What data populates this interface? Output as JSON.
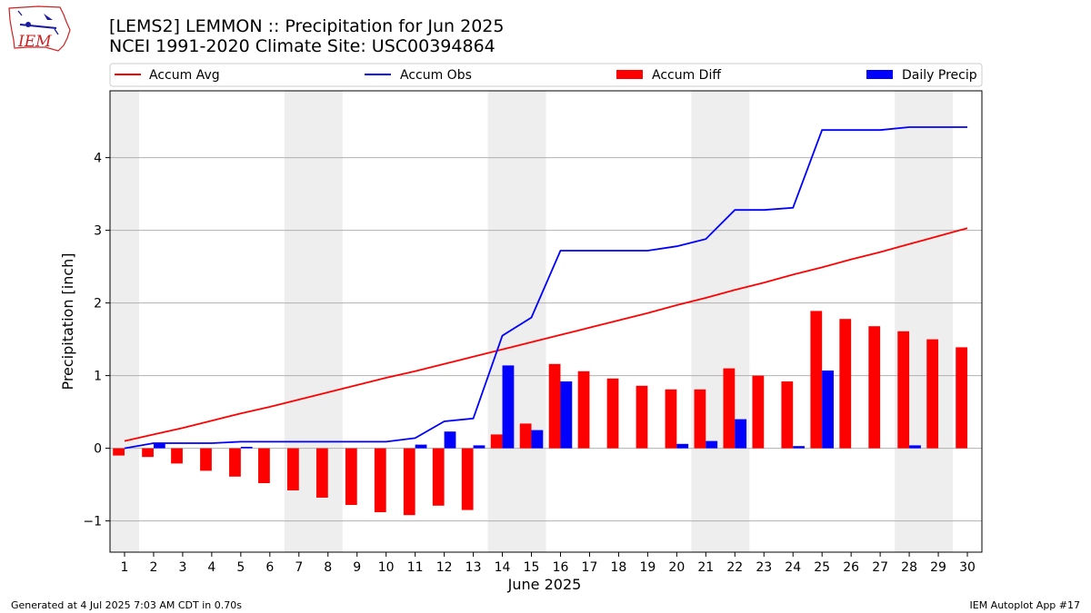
{
  "logo": {
    "text": "IEM"
  },
  "chart_data": {
    "type": "bar",
    "title": "[LEMS2] LEMMON :: Precipitation for Jun 2025",
    "subtitle": "NCEI 1991-2020 Climate Site: USC00394864",
    "xlabel": "June 2025",
    "ylabel": "Precipitation [inch]",
    "ylim": [
      -1.43,
      4.92
    ],
    "yticks": [
      -1,
      0,
      1,
      2,
      3,
      4
    ],
    "ytick_labels": [
      "−1",
      "0",
      "1",
      "2",
      "3",
      "4"
    ],
    "grid": "horizontal",
    "legend_position": "top",
    "days": [
      1,
      2,
      3,
      4,
      5,
      6,
      7,
      8,
      9,
      10,
      11,
      12,
      13,
      14,
      15,
      16,
      17,
      18,
      19,
      20,
      21,
      22,
      23,
      24,
      25,
      26,
      27,
      28,
      29,
      30
    ],
    "weekend_shading": [
      [
        0.5,
        1.5
      ],
      [
        6.5,
        8.5
      ],
      [
        13.5,
        15.5
      ],
      [
        20.5,
        22.5
      ],
      [
        27.5,
        29.5
      ]
    ],
    "series": [
      {
        "name": "Accum Avg",
        "kind": "line",
        "color": "#ff0000",
        "values": [
          0.1,
          0.19,
          0.28,
          0.38,
          0.48,
          0.57,
          0.67,
          0.77,
          0.87,
          0.97,
          1.06,
          1.16,
          1.26,
          1.36,
          1.46,
          1.56,
          1.66,
          1.76,
          1.86,
          1.97,
          2.07,
          2.18,
          2.28,
          2.39,
          2.49,
          2.6,
          2.7,
          2.81,
          2.92,
          3.03
        ]
      },
      {
        "name": "Accum Obs",
        "kind": "line",
        "color": "#0000ff",
        "values": [
          0.0,
          0.07,
          0.07,
          0.07,
          0.09,
          0.09,
          0.09,
          0.09,
          0.09,
          0.09,
          0.14,
          0.37,
          0.41,
          1.55,
          1.8,
          2.72,
          2.72,
          2.72,
          2.72,
          2.78,
          2.88,
          3.28,
          3.28,
          3.31,
          4.38,
          4.38,
          4.38,
          4.42,
          4.42,
          4.42
        ]
      },
      {
        "name": "Accum Diff",
        "kind": "bar",
        "color": "#ff0000",
        "values": [
          -0.1,
          -0.12,
          -0.21,
          -0.31,
          -0.39,
          -0.48,
          -0.58,
          -0.68,
          -0.78,
          -0.88,
          -0.92,
          -0.79,
          -0.85,
          0.19,
          0.34,
          1.16,
          1.06,
          0.96,
          0.86,
          0.81,
          0.81,
          1.1,
          1.0,
          0.92,
          1.89,
          1.78,
          1.68,
          1.61,
          1.5,
          1.39
        ]
      },
      {
        "name": "Daily Precip",
        "kind": "bar",
        "color": "#0000ff",
        "values": [
          0.0,
          0.07,
          0.0,
          0.0,
          0.02,
          0.0,
          0.0,
          0.0,
          0.0,
          0.0,
          0.05,
          0.23,
          0.04,
          1.14,
          0.25,
          0.92,
          0.0,
          0.0,
          0.0,
          0.06,
          0.1,
          0.4,
          0.0,
          0.03,
          1.07,
          0.0,
          0.0,
          0.04,
          0.0,
          0.0
        ]
      }
    ]
  },
  "footer": {
    "left": "Generated at 4 Jul 2025 7:03 AM CDT in 0.70s",
    "right": "IEM Autoplot App #17"
  }
}
